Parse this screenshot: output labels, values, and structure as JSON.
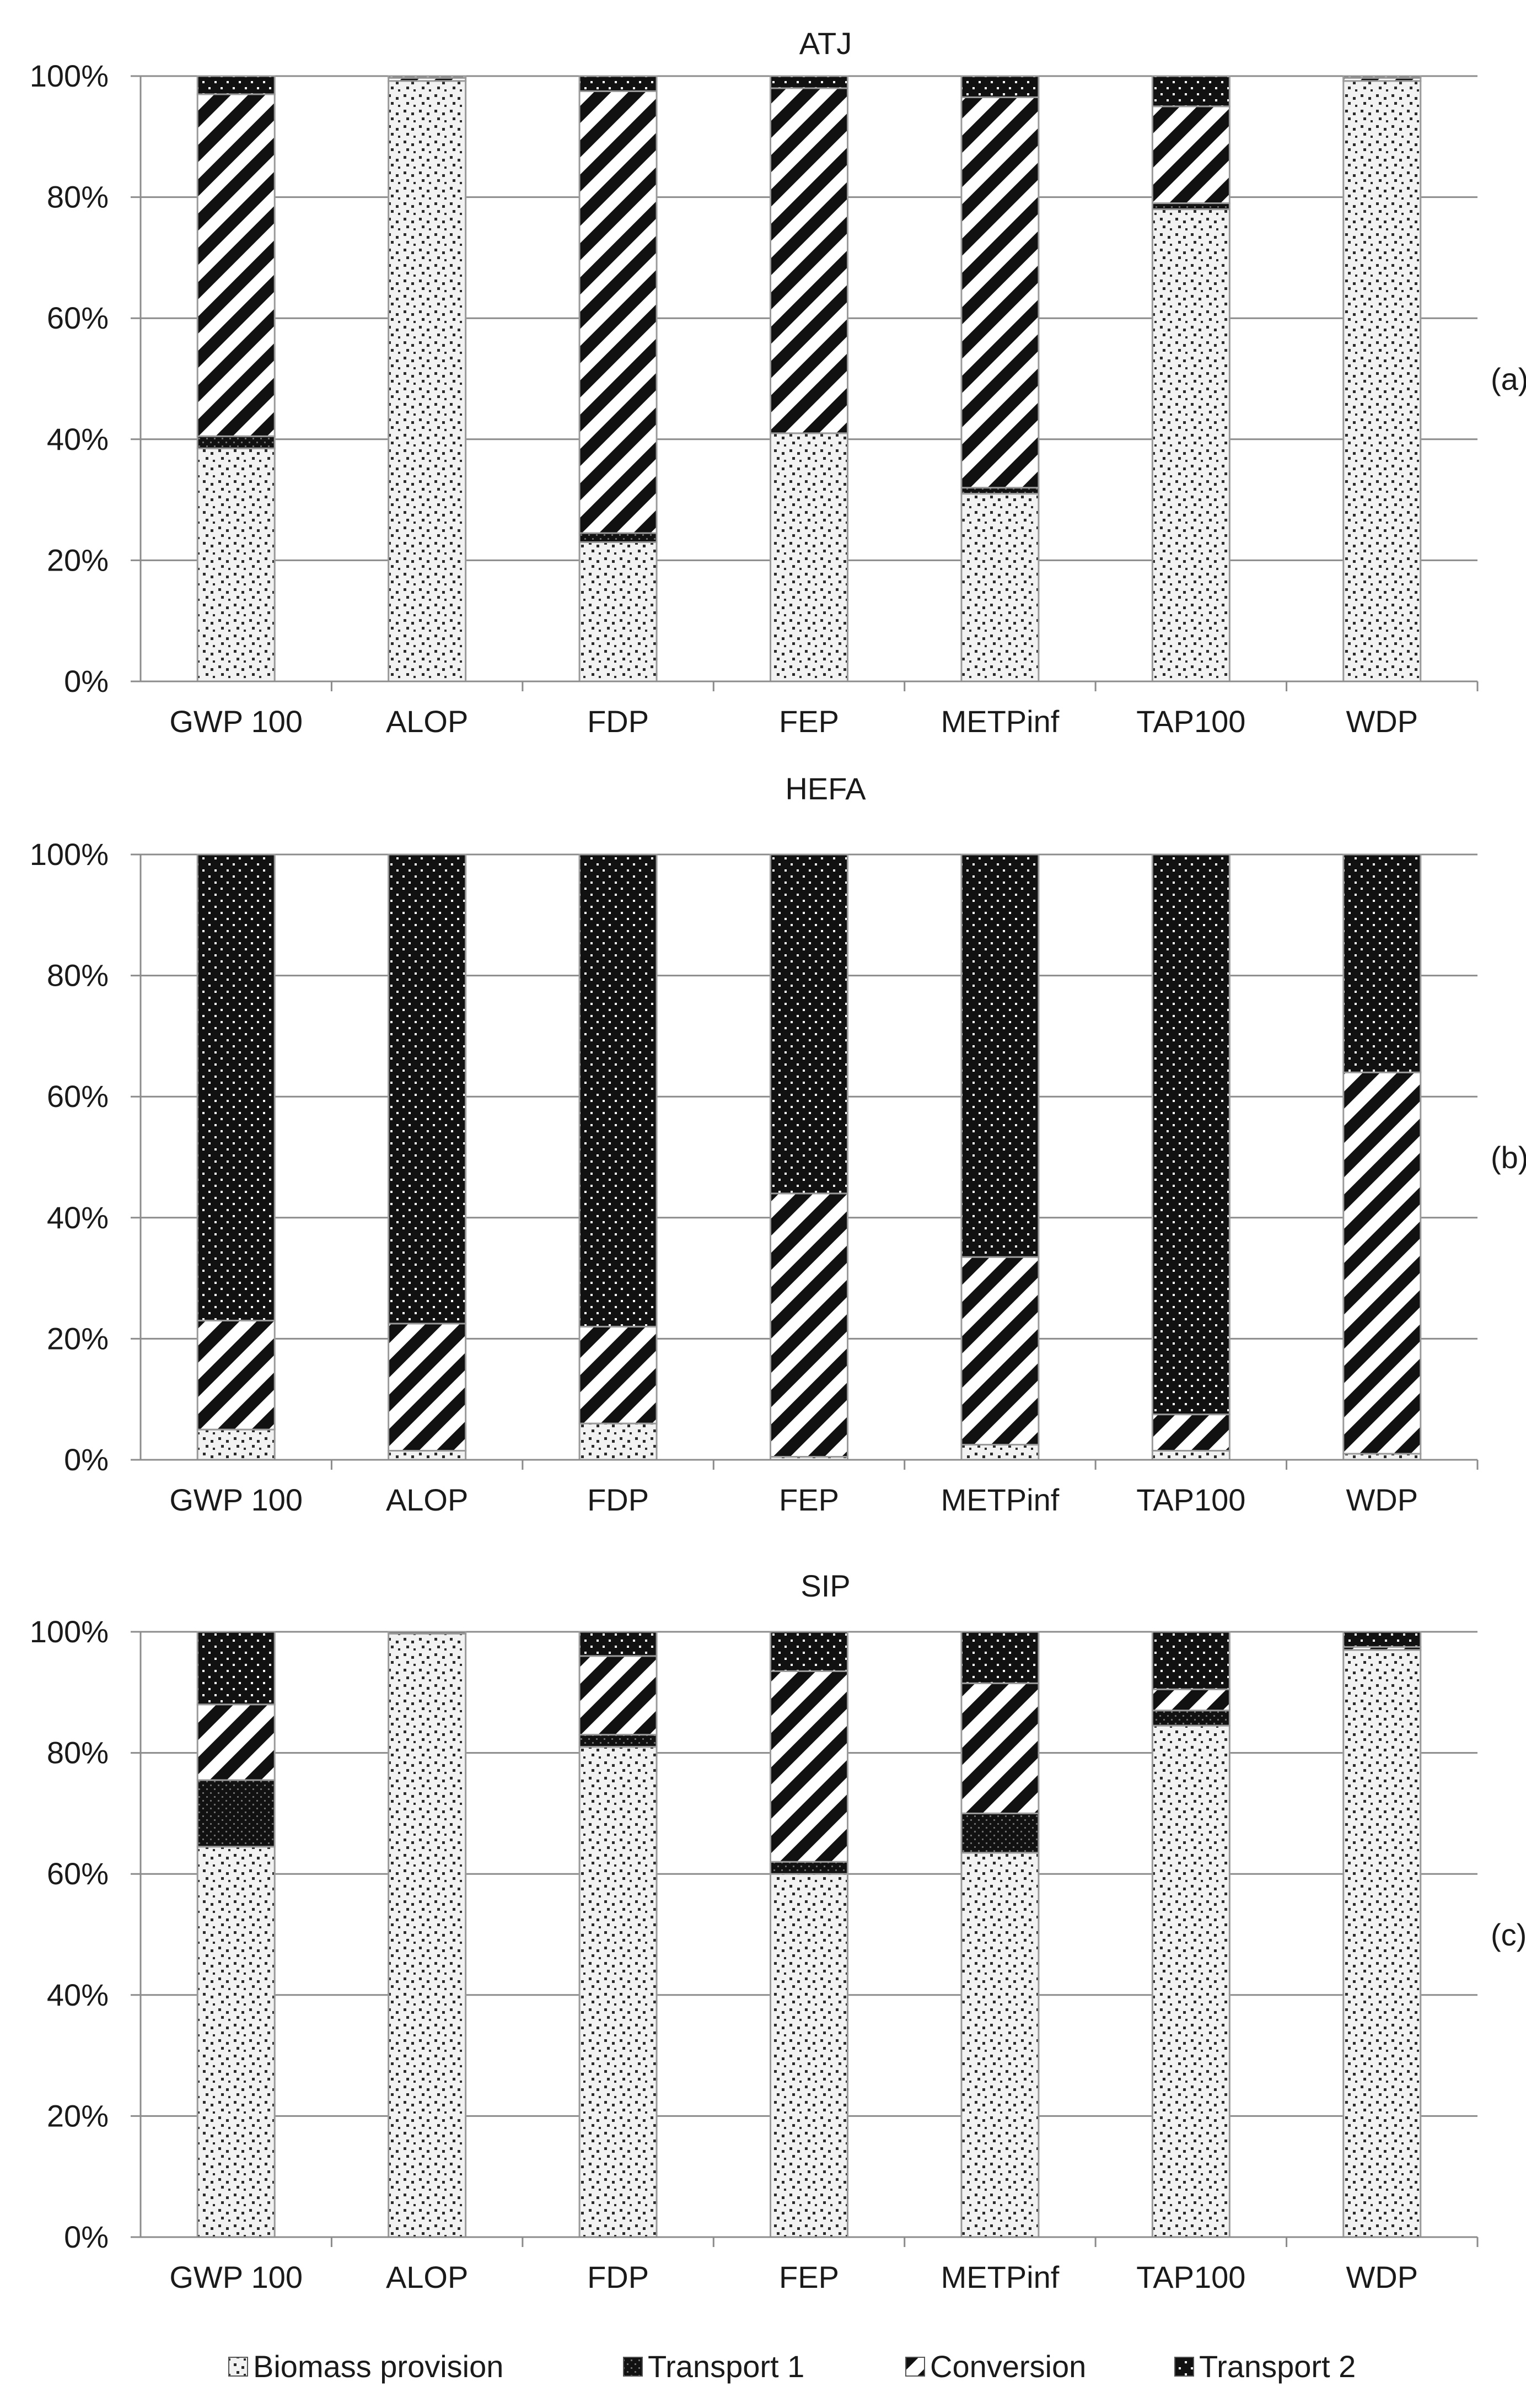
{
  "chart_data": [
    {
      "type": "bar",
      "stacked": true,
      "title": "ATJ",
      "panel_label": "(a)",
      "categories": [
        "GWP 100",
        "ALOP",
        "FDP",
        "FEP",
        "METPinf",
        "TAP100",
        "WDP"
      ],
      "series": [
        {
          "name": "Biomass provision",
          "values": [
            38.5,
            99.2,
            23.0,
            41.0,
            31.0,
            78.0,
            99.2
          ]
        },
        {
          "name": "Transport 1",
          "values": [
            2.0,
            0.0,
            1.5,
            0.0,
            1.0,
            1.0,
            0.0
          ]
        },
        {
          "name": "Conversion",
          "values": [
            56.5,
            0.5,
            73.0,
            57.0,
            64.5,
            16.0,
            0.5
          ]
        },
        {
          "name": "Transport 2",
          "values": [
            3.0,
            0.3,
            2.5,
            2.0,
            3.5,
            5.0,
            0.3
          ]
        }
      ],
      "ylim": [
        0,
        100
      ],
      "yticks": [
        "0%",
        "20%",
        "40%",
        "60%",
        "80%",
        "100%"
      ],
      "xlabel": "",
      "ylabel": ""
    },
    {
      "type": "bar",
      "stacked": true,
      "title": "HEFA",
      "panel_label": "(b)",
      "categories": [
        "GWP 100",
        "ALOP",
        "FDP",
        "FEP",
        "METPinf",
        "TAP100",
        "WDP"
      ],
      "series": [
        {
          "name": "Biomass provision",
          "values": [
            5.0,
            1.5,
            6.0,
            0.5,
            2.5,
            1.5,
            1.0
          ]
        },
        {
          "name": "Transport 1",
          "values": [
            0.0,
            0.0,
            0.0,
            0.0,
            0.0,
            0.0,
            0.0
          ]
        },
        {
          "name": "Conversion",
          "values": [
            18.0,
            21.0,
            16.0,
            43.5,
            31.0,
            6.0,
            63.0
          ]
        },
        {
          "name": "Transport 2",
          "values": [
            77.0,
            77.5,
            78.0,
            56.0,
            66.5,
            92.5,
            36.0
          ]
        }
      ],
      "ylim": [
        0,
        100
      ],
      "yticks": [
        "0%",
        "20%",
        "40%",
        "60%",
        "80%",
        "100%"
      ],
      "xlabel": "",
      "ylabel": ""
    },
    {
      "type": "bar",
      "stacked": true,
      "title": "SIP",
      "panel_label": "(c)",
      "categories": [
        "GWP 100",
        "ALOP",
        "FDP",
        "FEP",
        "METPinf",
        "TAP100",
        "WDP"
      ],
      "series": [
        {
          "name": "Biomass provision",
          "values": [
            64.5,
            99.7,
            81.0,
            60.0,
            63.5,
            84.5,
            97.0
          ]
        },
        {
          "name": "Transport 1",
          "values": [
            11.0,
            0.0,
            2.0,
            2.0,
            6.5,
            2.5,
            0.0
          ]
        },
        {
          "name": "Conversion",
          "values": [
            12.5,
            0.0,
            13.0,
            31.5,
            21.5,
            3.5,
            0.5
          ]
        },
        {
          "name": "Transport 2",
          "values": [
            12.0,
            0.3,
            4.0,
            6.5,
            8.5,
            9.5,
            2.5
          ]
        }
      ],
      "ylim": [
        0,
        100
      ],
      "yticks": [
        "0%",
        "20%",
        "40%",
        "60%",
        "80%",
        "100%"
      ],
      "xlabel": "",
      "ylabel": ""
    }
  ],
  "legend": {
    "position": "bottom",
    "entries": [
      "Biomass provision",
      "Transport 1",
      "Conversion",
      "Transport 2"
    ]
  },
  "colors": {
    "gridline": "#8c8c8c",
    "bar_outline": "#9a9a9a",
    "biomass_fill": "#f2f2f2",
    "biomass_dots": "#2b2b2b",
    "dark_fill": "#111111",
    "white": "#ffffff"
  }
}
